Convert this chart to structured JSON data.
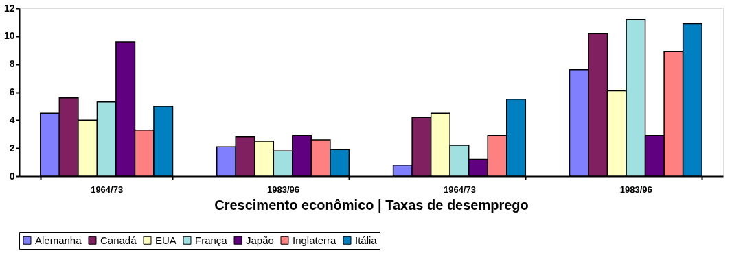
{
  "chart_data": {
    "type": "bar",
    "xlabel": "Crescimento econômico | Taxas de  desemprego",
    "categories": [
      "1964/73",
      "1983/96",
      "1964/73",
      "1983/96"
    ],
    "series": [
      {
        "name": "Alemanha",
        "color": "#8080ff",
        "values": [
          4.5,
          2.1,
          0.8,
          7.6
        ]
      },
      {
        "name": "Canadá",
        "color": "#802060",
        "values": [
          5.6,
          2.8,
          4.2,
          10.2
        ]
      },
      {
        "name": "EUA",
        "color": "#ffffc0",
        "values": [
          4.0,
          2.5,
          4.5,
          6.1
        ]
      },
      {
        "name": "França",
        "color": "#a0e0e0",
        "values": [
          5.3,
          1.8,
          2.2,
          11.2
        ]
      },
      {
        "name": "Japão",
        "color": "#600080",
        "values": [
          9.6,
          2.9,
          1.2,
          2.9
        ]
      },
      {
        "name": "Inglaterra",
        "color": "#ff8080",
        "values": [
          3.3,
          2.6,
          2.9,
          8.9
        ]
      },
      {
        "name": "Itália",
        "color": "#0080c0",
        "values": [
          5.0,
          1.9,
          5.5,
          10.9
        ]
      }
    ],
    "ylim": [
      0,
      12
    ],
    "yticks": [
      0,
      2,
      4,
      6,
      8,
      10,
      12
    ],
    "grid": false,
    "legend": "bottom"
  }
}
